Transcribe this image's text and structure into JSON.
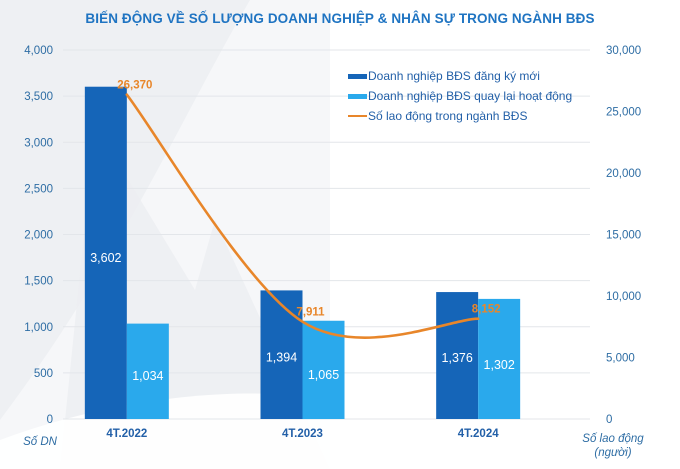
{
  "chart_data": {
    "type": "bar",
    "title": "BIẾN ĐỘNG VỀ SỐ LƯỢNG DOANH NGHIỆP & NHÂN SỰ TRONG NGÀNH BĐS",
    "categories": [
      "4T.2022",
      "4T.2023",
      "4T.2024"
    ],
    "series": [
      {
        "name": "Doanh nghiệp BĐS đăng ký mới",
        "kind": "bar",
        "axis": "left",
        "color": "#1565b8",
        "values": [
          3602,
          1394,
          1376
        ],
        "labels": [
          "3,602",
          "1,394",
          "1,376"
        ]
      },
      {
        "name": "Doanh nghiệp BĐS quay lại hoạt động",
        "kind": "bar",
        "axis": "left",
        "color": "#2aa9ec",
        "values": [
          1034,
          1065,
          1302
        ],
        "labels": [
          "1,034",
          "1,065",
          "1,302"
        ]
      },
      {
        "name": "Số lao động trong ngành BĐS",
        "kind": "line",
        "axis": "right",
        "color": "#e8862a",
        "values": [
          26370,
          7911,
          8152
        ],
        "labels": [
          "26,370",
          "7,911",
          "8,152"
        ]
      }
    ],
    "y_left": {
      "label": "Số DN",
      "range": [
        0,
        4000
      ],
      "ticks": [
        0,
        500,
        1000,
        1500,
        2000,
        2500,
        3000,
        3500,
        4000
      ],
      "tick_labels": [
        "0",
        "500",
        "1,000",
        "1,500",
        "2,000",
        "2,500",
        "3,000",
        "3,500",
        "4,000"
      ]
    },
    "y_right": {
      "label_line1": "Số lao động",
      "label_line2": "(người)",
      "range": [
        0,
        30000
      ],
      "ticks": [
        0,
        5000,
        10000,
        15000,
        20000,
        25000,
        30000
      ],
      "tick_labels": [
        "0",
        "5,000",
        "10,000",
        "15,000",
        "20,000",
        "25,000",
        "30,000"
      ]
    },
    "grid": true,
    "legend_position": "top-right",
    "colors": {
      "title": "#1f74c2",
      "axis_text": "#2e6da4",
      "grid": "#e3e6ea",
      "bar_label": "#ffffff",
      "line_label": "#e8862a"
    }
  }
}
